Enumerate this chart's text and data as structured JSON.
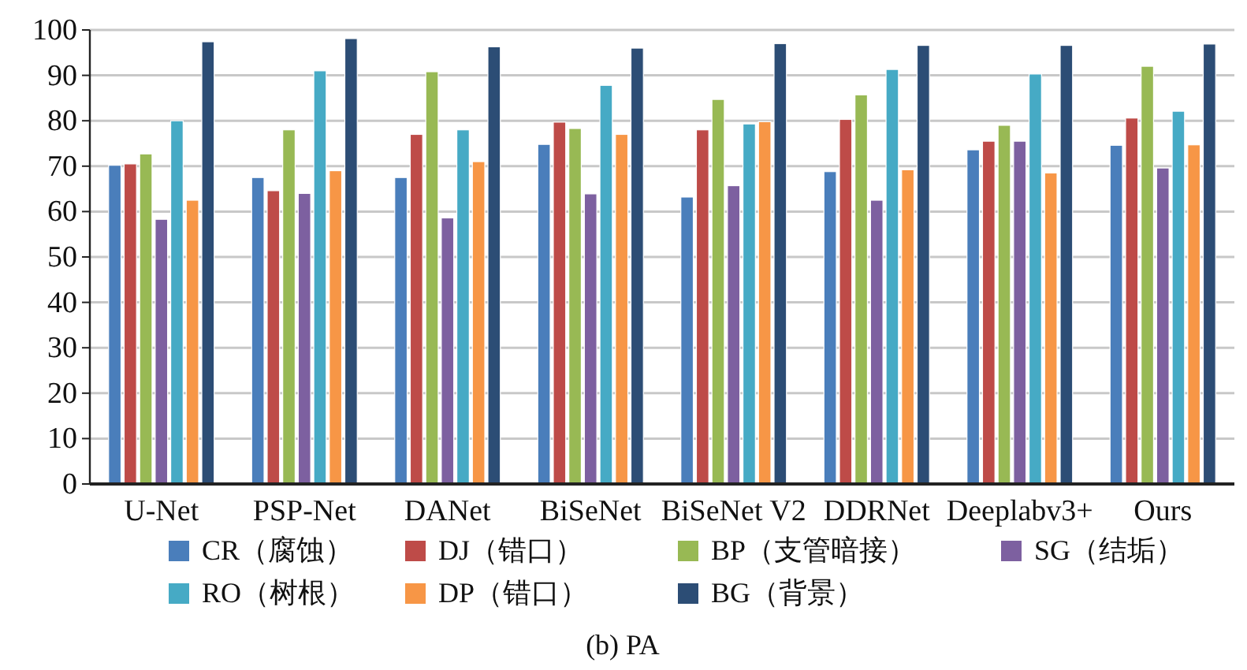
{
  "chart_data": {
    "type": "bar",
    "categories": [
      "U-Net",
      "PSP-Net",
      "DANet",
      "BiSeNet",
      "BiSeNet V2",
      "DDRNet",
      "Deeplabv3+",
      "Ours"
    ],
    "series": [
      {
        "name": "CR（腐蚀）",
        "color": "#4a7ebb",
        "values": [
          70.2,
          67.5,
          67.5,
          74.8,
          63.2,
          68.8,
          73.6,
          74.6
        ]
      },
      {
        "name": "DJ（错口）",
        "color": "#be4b48",
        "values": [
          70.5,
          64.6,
          77,
          79.7,
          78,
          80.3,
          75.5,
          80.6
        ]
      },
      {
        "name": "BP（支管暗接）",
        "color": "#98b954",
        "values": [
          72.7,
          78,
          90.8,
          78.3,
          84.7,
          85.7,
          79,
          92
        ]
      },
      {
        "name": "SG（结垢）",
        "color": "#7d60a0",
        "values": [
          58.3,
          64,
          58.6,
          63.9,
          65.7,
          62.5,
          75.5,
          69.6
        ]
      },
      {
        "name": "RO（树根）",
        "color": "#46aac5",
        "values": [
          80,
          91,
          78,
          87.8,
          79.3,
          91.3,
          90.3,
          82.1
        ]
      },
      {
        "name": "DP（错口）",
        "color": "#f79646",
        "values": [
          62.5,
          69,
          71,
          77,
          79.8,
          69.2,
          68.5,
          74.7
        ]
      },
      {
        "name": "BG（背景）",
        "color": "#2c4d75",
        "values": [
          97.4,
          98.1,
          96.3,
          96,
          97,
          96.6,
          96.6,
          96.9
        ]
      }
    ],
    "ylim": [
      0,
      100
    ],
    "yticks": [
      0,
      10,
      20,
      30,
      40,
      50,
      60,
      70,
      80,
      90,
      100
    ],
    "grid": "y",
    "legend": "bottom",
    "annotations": [
      "(b) PA"
    ]
  }
}
